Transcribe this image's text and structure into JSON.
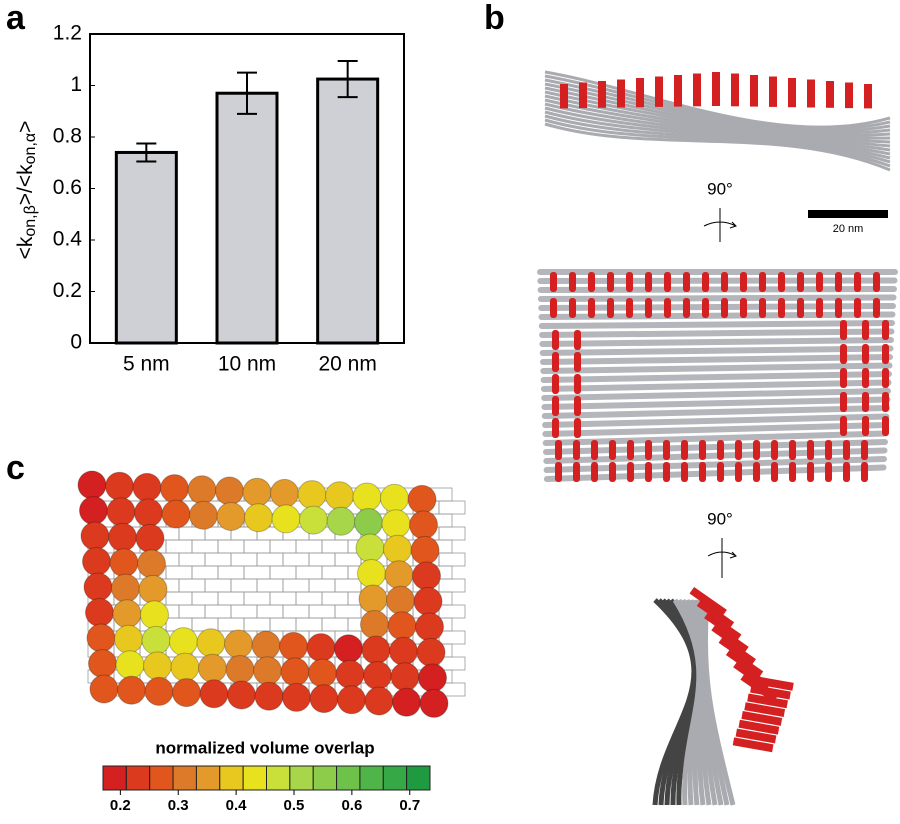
{
  "panel_labels": [
    "a",
    "b",
    "c"
  ],
  "chart_data": {
    "type": "bar",
    "ylabel": [
      "<k",
      "on,β",
      ">/<k",
      "on,α",
      ">"
    ],
    "categories": [
      "5 nm",
      "10 nm",
      "20 nm"
    ],
    "values": [
      0.74,
      0.97,
      1.025
    ],
    "errors": [
      0.035,
      0.08,
      0.07
    ],
    "color": "#cfd0d6",
    "ylim": [
      0,
      1.2
    ],
    "yticks": [
      0,
      0.2,
      0.4,
      0.6,
      0.8,
      1,
      1.2
    ]
  },
  "structure": {
    "rotation_1": "90°",
    "rotation_2": "90°",
    "scale_bar": "20 nm"
  },
  "colorbar": {
    "title": "normalized volume overlap",
    "lim": [
      0.17,
      0.735
    ],
    "ticks": [
      0.2,
      0.3,
      0.4,
      0.5,
      0.6,
      0.7
    ],
    "colors": [
      "#d42020",
      "#dc3a1e",
      "#e0561c",
      "#dd7a2a",
      "#e39a2a",
      "#e8c81e",
      "#e8e21e",
      "#c9e03a",
      "#a7d64a",
      "#8ccc4a",
      "#6ec24a",
      "#4fb548",
      "#36a845",
      "#1f9a40"
    ]
  }
}
